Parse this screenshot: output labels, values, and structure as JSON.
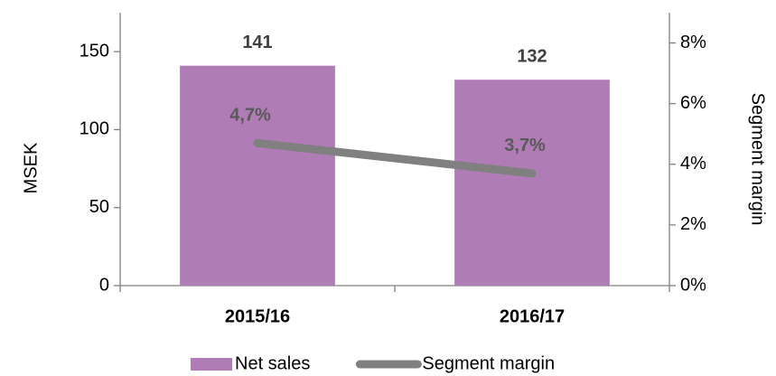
{
  "chart_data": {
    "type": "combo",
    "categories": [
      "2015/16",
      "2016/17"
    ],
    "ylabel": "MSEK",
    "y2label": "Segment margin",
    "ylim": [
      0,
      175
    ],
    "yticks": [
      0,
      50,
      100,
      150
    ],
    "y2lim": [
      0,
      9
    ],
    "y2ticks": [
      {
        "value": 0,
        "label": "0%"
      },
      {
        "value": 2,
        "label": "2%"
      },
      {
        "value": 4,
        "label": "4%"
      },
      {
        "value": 6,
        "label": "6%"
      },
      {
        "value": 8,
        "label": "8%"
      }
    ],
    "legend": "bottom",
    "series": [
      {
        "name": "Net sales",
        "type": "bar",
        "color": "#b07cb6",
        "values": [
          141,
          132
        ]
      },
      {
        "name": "Segment margin",
        "type": "line",
        "axis": "y2",
        "color": "#808080",
        "values": [
          4.7,
          3.7
        ],
        "value_labels": [
          "4,7%",
          "3,7%"
        ]
      }
    ]
  }
}
